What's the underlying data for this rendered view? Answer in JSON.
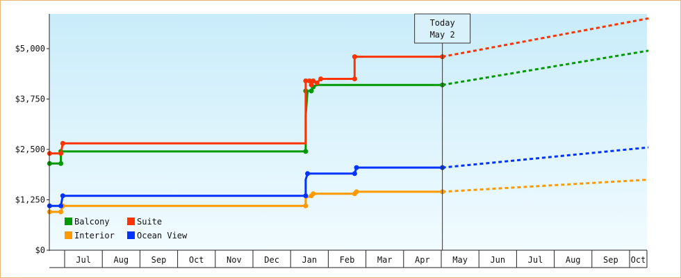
{
  "chart_data": {
    "type": "line",
    "title": "",
    "xlabel": "",
    "ylabel": "",
    "x_axis": {
      "months": [
        "Jul",
        "Aug",
        "Sep",
        "Oct",
        "Nov",
        "Dec",
        "Jan",
        "Feb",
        "Mar",
        "Apr",
        "May",
        "Jun",
        "Jul",
        "Aug",
        "Sep",
        "Oct"
      ]
    },
    "y_axis": {
      "ylim": [
        0,
        6000
      ],
      "ticks": [
        0,
        1250,
        2500,
        3750,
        5000
      ],
      "tick_labels": [
        "$0",
        "$1,250",
        "$2,500",
        "$3,750",
        "$5,000"
      ]
    },
    "today": {
      "line1": "Today",
      "line2": "May 2",
      "month_index": 10.03
    },
    "legend": {
      "placement": "bottom-left"
    },
    "series": [
      {
        "name": "Balcony",
        "color": "#009900",
        "points": [
          [
            -0.4,
            2150
          ],
          [
            -0.1,
            2150
          ],
          [
            -0.1,
            2450
          ],
          [
            6.4,
            2450
          ],
          [
            6.4,
            3350
          ],
          [
            6.45,
            3950
          ],
          [
            6.55,
            3950
          ],
          [
            6.6,
            4050
          ],
          [
            6.7,
            4100
          ],
          [
            10.03,
            4100
          ]
        ],
        "markers": [
          [
            -0.4,
            2150
          ],
          [
            -0.1,
            2150
          ],
          [
            -0.1,
            2450
          ],
          [
            6.4,
            2450
          ],
          [
            6.4,
            3950
          ],
          [
            6.55,
            3950
          ],
          [
            6.6,
            4050
          ],
          [
            10.03,
            4100
          ]
        ],
        "forecast": [
          [
            10.03,
            4100
          ],
          [
            15.5,
            4950
          ]
        ]
      },
      {
        "name": "Suite",
        "color": "#ff3300",
        "points": [
          [
            -0.4,
            2400
          ],
          [
            -0.1,
            2400
          ],
          [
            -0.05,
            2650
          ],
          [
            6.4,
            2650
          ],
          [
            6.4,
            4200
          ],
          [
            6.5,
            4200
          ],
          [
            6.55,
            4100
          ],
          [
            6.6,
            4200
          ],
          [
            6.7,
            4150
          ],
          [
            6.8,
            4250
          ],
          [
            7.7,
            4250
          ],
          [
            7.7,
            4800
          ],
          [
            10.03,
            4800
          ]
        ],
        "markers": [
          [
            -0.4,
            2400
          ],
          [
            -0.1,
            2400
          ],
          [
            -0.05,
            2650
          ],
          [
            6.4,
            4200
          ],
          [
            6.5,
            4200
          ],
          [
            6.55,
            4100
          ],
          [
            6.6,
            4200
          ],
          [
            6.7,
            4150
          ],
          [
            6.8,
            4250
          ],
          [
            7.7,
            4250
          ],
          [
            7.7,
            4800
          ],
          [
            10.03,
            4800
          ]
        ],
        "forecast": [
          [
            10.03,
            4800
          ],
          [
            15.5,
            5750
          ]
        ]
      },
      {
        "name": "Interior",
        "color": "#ff9900",
        "points": [
          [
            -0.4,
            950
          ],
          [
            -0.1,
            950
          ],
          [
            -0.05,
            1100
          ],
          [
            6.4,
            1100
          ],
          [
            6.4,
            1300
          ],
          [
            6.55,
            1350
          ],
          [
            6.6,
            1400
          ],
          [
            7.7,
            1400
          ],
          [
            7.75,
            1450
          ],
          [
            10.03,
            1450
          ]
        ],
        "markers": [
          [
            -0.4,
            950
          ],
          [
            -0.1,
            950
          ],
          [
            -0.05,
            1100
          ],
          [
            6.4,
            1100
          ],
          [
            6.55,
            1350
          ],
          [
            6.6,
            1400
          ],
          [
            7.7,
            1400
          ],
          [
            7.75,
            1450
          ],
          [
            10.03,
            1450
          ]
        ],
        "forecast": [
          [
            10.03,
            1450
          ],
          [
            15.5,
            1750
          ]
        ]
      },
      {
        "name": "Ocean View",
        "color": "#0033ff",
        "points": [
          [
            -0.4,
            1100
          ],
          [
            -0.1,
            1100
          ],
          [
            -0.05,
            1350
          ],
          [
            6.4,
            1350
          ],
          [
            6.4,
            1750
          ],
          [
            6.45,
            1900
          ],
          [
            7.7,
            1900
          ],
          [
            7.75,
            2050
          ],
          [
            10.03,
            2050
          ]
        ],
        "markers": [
          [
            -0.4,
            1100
          ],
          [
            -0.1,
            1100
          ],
          [
            -0.05,
            1350
          ],
          [
            6.4,
            1350
          ],
          [
            6.45,
            1900
          ],
          [
            7.7,
            1900
          ],
          [
            7.75,
            2050
          ],
          [
            10.03,
            2050
          ]
        ],
        "forecast": [
          [
            10.03,
            2050
          ],
          [
            15.5,
            2550
          ]
        ]
      }
    ]
  }
}
